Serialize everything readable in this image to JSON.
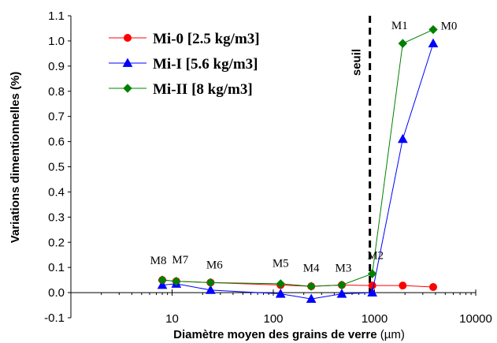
{
  "chart_data": {
    "type": "line",
    "xscale": "log",
    "xlim": [
      1,
      10000
    ],
    "ylim": [
      -0.1,
      1.1
    ],
    "xticks": [
      10,
      100,
      1000,
      10000
    ],
    "xtick_labels": [
      "10",
      "100",
      "1000",
      "10000"
    ],
    "yticks": [
      -0.1,
      0.0,
      0.1,
      0.2,
      0.3,
      0.4,
      0.5,
      0.6,
      0.7,
      0.8,
      0.9,
      1.0,
      1.1
    ],
    "ytick_labels": [
      "-0.1",
      "0.0",
      "0.1",
      "0.2",
      "0.3",
      "0.4",
      "0.5",
      "0.6",
      "0.7",
      "0.8",
      "0.9",
      "1.0",
      "1.1"
    ],
    "xlabel": "Diamètre moyen des grains de verre",
    "xlabel_unit": "(µm)",
    "ylabel": "Variations dimentionnelles (%)",
    "grid": false,
    "legend_position": "top-left",
    "series": [
      {
        "name": "Mi-0 [2.5 kg/m3]",
        "color": "#ff0000",
        "marker": "circle",
        "x": [
          8,
          11,
          24,
          118,
          237,
          475,
          950,
          1900,
          3800
        ],
        "y": [
          0.05,
          0.045,
          0.04,
          0.03,
          0.025,
          0.03,
          0.028,
          0.028,
          0.022
        ]
      },
      {
        "name": "Mi-I [5.6 kg/m3]",
        "color": "#0000ff",
        "marker": "triangle",
        "x": [
          8,
          11,
          24,
          118,
          237,
          475,
          950,
          1900,
          3800
        ],
        "y": [
          0.03,
          0.035,
          0.01,
          -0.005,
          -0.025,
          -0.005,
          0.0,
          0.61,
          0.99
        ]
      },
      {
        "name": "Mi-II [8 kg/m3]",
        "color": "#008000",
        "marker": "diamond",
        "x": [
          8,
          11,
          24,
          118,
          237,
          475,
          950,
          1900,
          3800
        ],
        "y": [
          0.05,
          0.045,
          0.04,
          0.035,
          0.025,
          0.03,
          0.075,
          0.99,
          1.045
        ]
      }
    ],
    "threshold": {
      "x": 900,
      "label": "seuil",
      "style": "dashed",
      "color": "#000000"
    },
    "annotations": [
      {
        "text": "M8",
        "x": 8,
        "y": 0.05
      },
      {
        "text": "M7",
        "x": 11,
        "y": 0.05
      },
      {
        "text": "M6",
        "x": 24,
        "y": 0.04
      },
      {
        "text": "M5",
        "x": 118,
        "y": 0.04
      },
      {
        "text": "M4",
        "x": 237,
        "y": 0.03
      },
      {
        "text": "M3",
        "x": 475,
        "y": 0.03
      },
      {
        "text": "M2",
        "x": 950,
        "y": 0.08
      },
      {
        "text": "M1",
        "x": 1900,
        "y": 0.99
      },
      {
        "text": "M0",
        "x": 3800,
        "y": 1.045
      }
    ]
  }
}
